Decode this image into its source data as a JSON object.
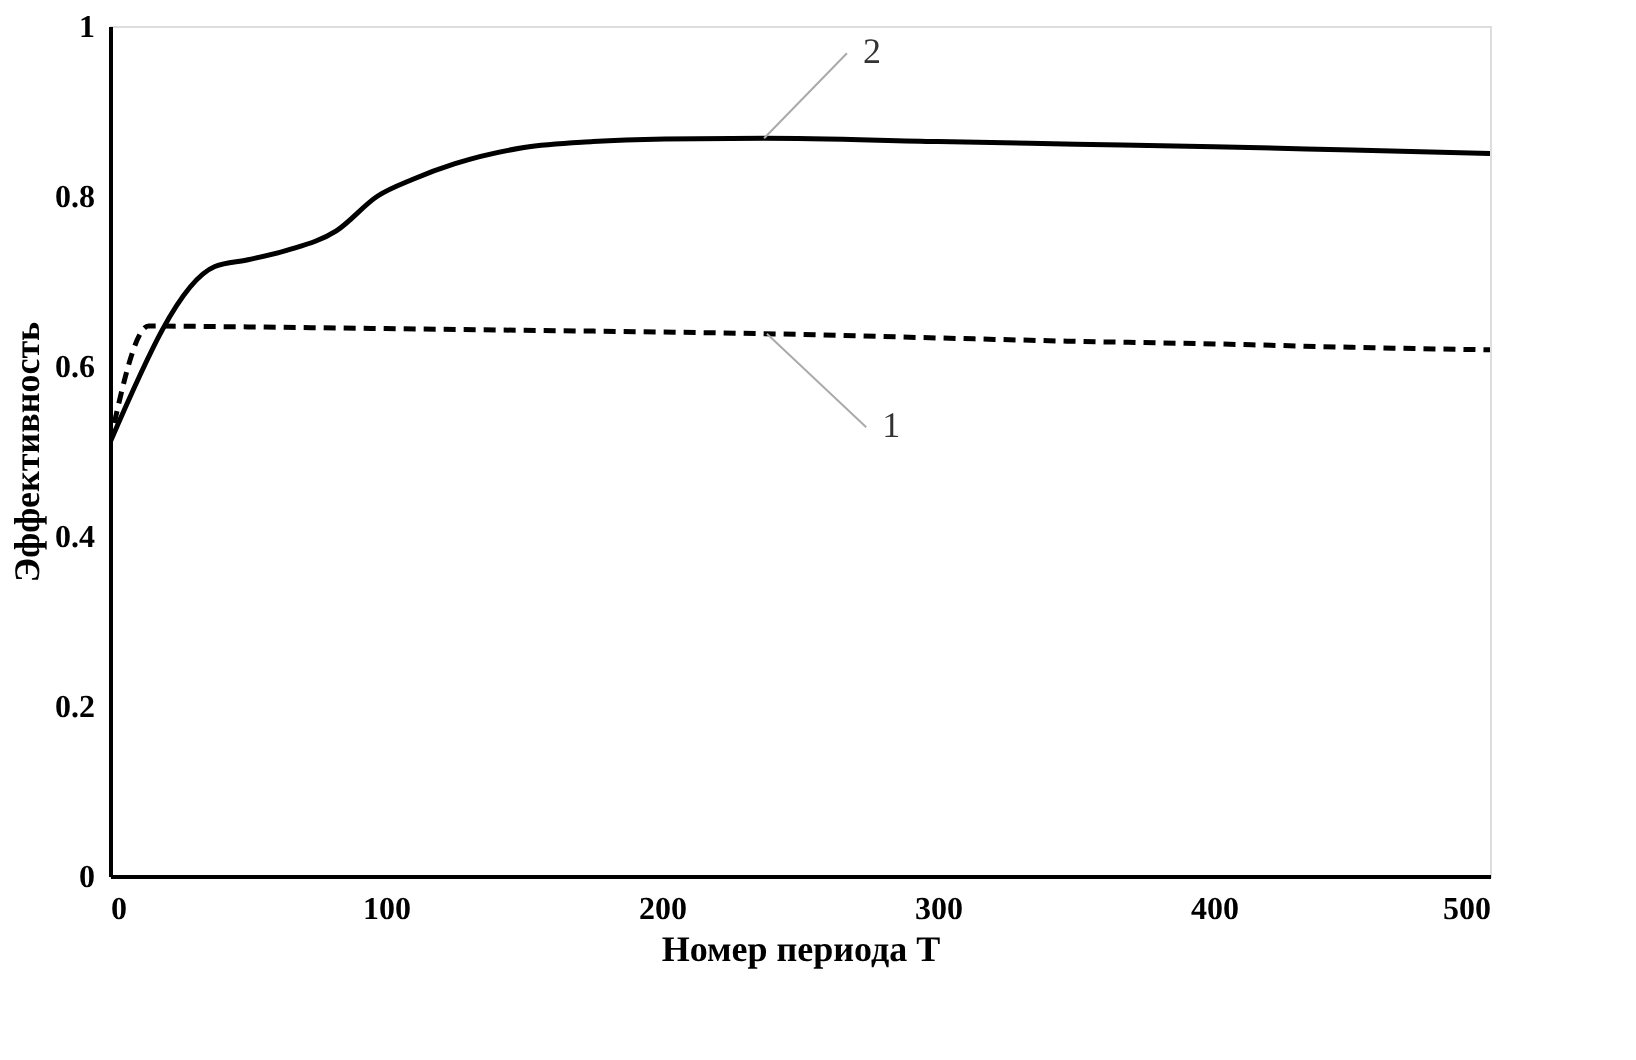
{
  "chart_data": {
    "type": "line",
    "xlabel": "Номер периода T",
    "ylabel": "Эффективность",
    "xlim": [
      0,
      500
    ],
    "ylim": [
      0,
      1
    ],
    "xticks": [
      0,
      100,
      200,
      300,
      400,
      500
    ],
    "yticks": [
      0,
      0.2,
      0.4,
      0.6,
      0.8,
      1
    ],
    "grid": false,
    "legend": false,
    "series": [
      {
        "color": "#000000",
        "line_style": "dashed",
        "x": [
          0,
          14,
          50,
          100,
          150,
          200,
          237,
          300,
          350,
          400,
          450,
          500
        ],
        "values": [
          0.51,
          0.647,
          0.646,
          0.644,
          0.642,
          0.64,
          0.638,
          0.633,
          0.629,
          0.626,
          0.622,
          0.619
        ]
      },
      {
        "color": "#000000",
        "line_style": "solid",
        "x": [
          0,
          38,
          50,
          64,
          82,
          97,
          110,
          125,
          150,
          175,
          201,
          237,
          300,
          350,
          400,
          450,
          500
        ],
        "values": [
          0.51,
          0.717,
          0.725,
          0.736,
          0.759,
          0.8,
          0.82,
          0.838,
          0.857,
          0.864,
          0.867,
          0.868,
          0.864,
          0.861,
          0.858,
          0.854,
          0.85
        ]
      }
    ],
    "annotations": [
      {
        "text": "1",
        "x": 238,
        "y": 0.638
      },
      {
        "text": "2",
        "x": 237,
        "y": 0.868
      }
    ]
  }
}
